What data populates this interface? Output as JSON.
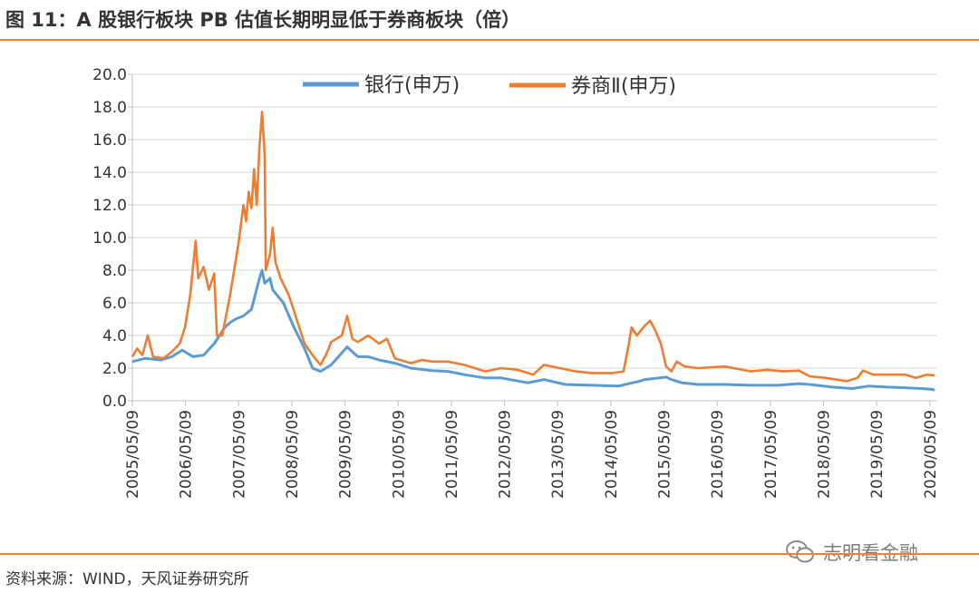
{
  "header": {
    "title": "图 11：A 股银行板块 PB 估值长期明显低于券商板块（倍）"
  },
  "footer": {
    "source": "资料来源：WIND，天风证券研究所"
  },
  "watermark": {
    "text": "志明看金融",
    "icon": "wechat-icon"
  },
  "chart_data": {
    "type": "line",
    "title": "",
    "xlabel": "",
    "ylabel": "",
    "ylim": [
      0,
      20
    ],
    "yticks": [
      "0.0",
      "2.0",
      "4.0",
      "6.0",
      "8.0",
      "10.0",
      "12.0",
      "14.0",
      "16.0",
      "18.0",
      "20.0"
    ],
    "xticks": [
      "2005/05/09",
      "2006/05/09",
      "2007/05/09",
      "2008/05/09",
      "2009/05/09",
      "2010/05/09",
      "2011/05/09",
      "2012/05/09",
      "2013/05/09",
      "2014/05/09",
      "2015/05/09",
      "2016/05/09",
      "2017/05/09",
      "2018/05/09",
      "2019/05/09",
      "2020/05/09"
    ],
    "grid": "horizontal",
    "legend_position": "top",
    "series": [
      {
        "name": "银行(申万)",
        "color": "#5b9bd5",
        "points": [
          [
            2005.36,
            2.4
          ],
          [
            2005.6,
            2.6
          ],
          [
            2005.9,
            2.5
          ],
          [
            2006.1,
            2.7
          ],
          [
            2006.3,
            3.1
          ],
          [
            2006.5,
            2.7
          ],
          [
            2006.7,
            2.8
          ],
          [
            2006.9,
            3.5
          ],
          [
            2007.1,
            4.5
          ],
          [
            2007.2,
            4.8
          ],
          [
            2007.3,
            5.0
          ],
          [
            2007.45,
            5.2
          ],
          [
            2007.6,
            5.6
          ],
          [
            2007.75,
            7.5
          ],
          [
            2007.8,
            8.0
          ],
          [
            2007.85,
            7.2
          ],
          [
            2007.95,
            7.5
          ],
          [
            2008.0,
            6.8
          ],
          [
            2008.2,
            6.0
          ],
          [
            2008.4,
            4.5
          ],
          [
            2008.6,
            3.2
          ],
          [
            2008.75,
            2.0
          ],
          [
            2008.9,
            1.8
          ],
          [
            2009.1,
            2.2
          ],
          [
            2009.4,
            3.3
          ],
          [
            2009.6,
            2.7
          ],
          [
            2009.8,
            2.7
          ],
          [
            2010.0,
            2.5
          ],
          [
            2010.3,
            2.3
          ],
          [
            2010.6,
            2.0
          ],
          [
            2011.0,
            1.85
          ],
          [
            2011.3,
            1.8
          ],
          [
            2011.6,
            1.6
          ],
          [
            2012.0,
            1.4
          ],
          [
            2012.3,
            1.4
          ],
          [
            2012.8,
            1.1
          ],
          [
            2013.1,
            1.3
          ],
          [
            2013.5,
            1.0
          ],
          [
            2014.0,
            0.95
          ],
          [
            2014.5,
            0.9
          ],
          [
            2014.9,
            1.2
          ],
          [
            2015.0,
            1.3
          ],
          [
            2015.4,
            1.45
          ],
          [
            2015.5,
            1.3
          ],
          [
            2015.7,
            1.1
          ],
          [
            2016.0,
            1.0
          ],
          [
            2016.5,
            1.0
          ],
          [
            2017.0,
            0.95
          ],
          [
            2017.5,
            0.95
          ],
          [
            2017.9,
            1.05
          ],
          [
            2018.1,
            1.0
          ],
          [
            2018.5,
            0.85
          ],
          [
            2018.9,
            0.75
          ],
          [
            2019.2,
            0.9
          ],
          [
            2019.5,
            0.85
          ],
          [
            2019.9,
            0.8
          ],
          [
            2020.2,
            0.75
          ],
          [
            2020.4,
            0.7
          ],
          [
            2020.45,
            0.65
          ]
        ]
      },
      {
        "name": "券商Ⅱ(申万)",
        "color": "#ed7d31",
        "points": [
          [
            2005.36,
            2.7
          ],
          [
            2005.45,
            3.2
          ],
          [
            2005.55,
            2.8
          ],
          [
            2005.65,
            4.0
          ],
          [
            2005.75,
            2.7
          ],
          [
            2005.95,
            2.6
          ],
          [
            2006.1,
            3.0
          ],
          [
            2006.25,
            3.5
          ],
          [
            2006.35,
            4.5
          ],
          [
            2006.45,
            6.5
          ],
          [
            2006.55,
            9.8
          ],
          [
            2006.6,
            7.5
          ],
          [
            2006.7,
            8.2
          ],
          [
            2006.8,
            6.8
          ],
          [
            2006.9,
            7.8
          ],
          [
            2006.95,
            4.0
          ],
          [
            2007.05,
            4.0
          ],
          [
            2007.2,
            6.5
          ],
          [
            2007.35,
            9.5
          ],
          [
            2007.45,
            12.0
          ],
          [
            2007.5,
            11.0
          ],
          [
            2007.55,
            12.8
          ],
          [
            2007.6,
            11.8
          ],
          [
            2007.65,
            14.2
          ],
          [
            2007.7,
            12.0
          ],
          [
            2007.75,
            15.5
          ],
          [
            2007.8,
            17.7
          ],
          [
            2007.85,
            15.0
          ],
          [
            2007.87,
            8.0
          ],
          [
            2007.95,
            9.0
          ],
          [
            2008.0,
            10.6
          ],
          [
            2008.05,
            8.5
          ],
          [
            2008.15,
            7.5
          ],
          [
            2008.3,
            6.5
          ],
          [
            2008.4,
            5.5
          ],
          [
            2008.6,
            3.5
          ],
          [
            2008.75,
            2.8
          ],
          [
            2008.9,
            2.2
          ],
          [
            2009.0,
            2.8
          ],
          [
            2009.1,
            3.6
          ],
          [
            2009.3,
            4.0
          ],
          [
            2009.4,
            5.2
          ],
          [
            2009.5,
            3.8
          ],
          [
            2009.6,
            3.6
          ],
          [
            2009.8,
            4.0
          ],
          [
            2010.0,
            3.5
          ],
          [
            2010.15,
            3.8
          ],
          [
            2010.3,
            2.6
          ],
          [
            2010.6,
            2.3
          ],
          [
            2010.8,
            2.5
          ],
          [
            2011.0,
            2.4
          ],
          [
            2011.3,
            2.4
          ],
          [
            2011.6,
            2.2
          ],
          [
            2012.0,
            1.8
          ],
          [
            2012.3,
            2.0
          ],
          [
            2012.6,
            1.9
          ],
          [
            2012.9,
            1.6
          ],
          [
            2013.1,
            2.2
          ],
          [
            2013.4,
            2.0
          ],
          [
            2013.7,
            1.8
          ],
          [
            2014.0,
            1.7
          ],
          [
            2014.4,
            1.7
          ],
          [
            2014.6,
            1.8
          ],
          [
            2014.7,
            3.5
          ],
          [
            2014.75,
            4.5
          ],
          [
            2014.85,
            4.0
          ],
          [
            2015.0,
            4.6
          ],
          [
            2015.1,
            4.9
          ],
          [
            2015.2,
            4.3
          ],
          [
            2015.3,
            3.5
          ],
          [
            2015.4,
            2.1
          ],
          [
            2015.5,
            1.8
          ],
          [
            2015.6,
            2.4
          ],
          [
            2015.75,
            2.1
          ],
          [
            2016.0,
            2.0
          ],
          [
            2016.5,
            2.1
          ],
          [
            2017.0,
            1.8
          ],
          [
            2017.3,
            1.9
          ],
          [
            2017.6,
            1.8
          ],
          [
            2017.9,
            1.85
          ],
          [
            2018.1,
            1.5
          ],
          [
            2018.4,
            1.4
          ],
          [
            2018.8,
            1.2
          ],
          [
            2019.0,
            1.4
          ],
          [
            2019.1,
            1.85
          ],
          [
            2019.3,
            1.6
          ],
          [
            2019.6,
            1.6
          ],
          [
            2019.9,
            1.6
          ],
          [
            2020.1,
            1.4
          ],
          [
            2020.3,
            1.6
          ],
          [
            2020.45,
            1.55
          ]
        ]
      }
    ]
  }
}
